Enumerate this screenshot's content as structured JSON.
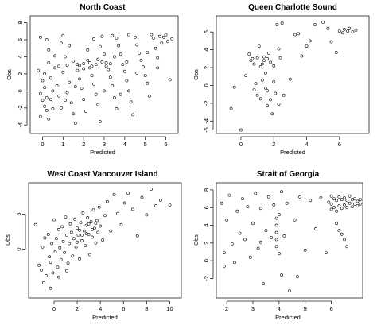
{
  "figure": {
    "panels": [
      {
        "title": "North Coast",
        "xlabel": "Predicted",
        "ylabel": "Obs",
        "xticks": [
          0,
          1,
          2,
          3,
          4,
          5,
          6
        ],
        "yticks": [
          -4,
          -2,
          0,
          2,
          4,
          6,
          8
        ],
        "xlim": [
          -0.6,
          6.6
        ],
        "ylim": [
          -5,
          8.8
        ]
      },
      {
        "title": "Queen Charlotte Sound",
        "xlabel": "Predicted",
        "ylabel": "Obs",
        "xticks": [
          0,
          2,
          4,
          6
        ],
        "yticks": [
          -5,
          -4,
          -2,
          0,
          2,
          4,
          6
        ],
        "xlim": [
          -1.5,
          7.8
        ],
        "ylim": [
          -5.4,
          7.8
        ]
      },
      {
        "title": "West Coast Vancouver Island",
        "xlabel": "Predicted",
        "ylabel": "Obs",
        "xticks": [
          0,
          2,
          4,
          6,
          8,
          10
        ],
        "yticks": [
          0,
          5
        ],
        "xlim": [
          -2.2,
          11
        ],
        "ylim": [
          -7,
          9.5
        ]
      },
      {
        "title": "Strait of Georgia",
        "xlabel": "Predicted",
        "ylabel": "Obs",
        "xticks": [
          2,
          3,
          4,
          5,
          6
        ],
        "yticks": [
          -2,
          0,
          2,
          4,
          6,
          8
        ],
        "xlim": [
          1.6,
          7.2
        ],
        "ylim": [
          -4.2,
          8.8
        ]
      }
    ]
  },
  "chart_data": [
    {
      "type": "scatter",
      "title": "North Coast",
      "xlabel": "Predicted",
      "ylabel": "Obs",
      "xlim": [
        -0.6,
        6.6
      ],
      "ylim": [
        -5,
        8.8
      ],
      "grid": false,
      "points": [
        [
          -0.1,
          6.3
        ],
        [
          0.2,
          6.0
        ],
        [
          0.3,
          4.8
        ],
        [
          -0.2,
          2.4
        ],
        [
          0.1,
          2.0
        ],
        [
          0.0,
          1.2
        ],
        [
          0.1,
          0.4
        ],
        [
          -0.1,
          -0.3
        ],
        [
          0.0,
          -1.1
        ],
        [
          0.1,
          -1.8
        ],
        [
          0.2,
          -2.3
        ],
        [
          -0.1,
          -3.0
        ],
        [
          0.3,
          -3.3
        ],
        [
          0.4,
          -1.0
        ],
        [
          0.5,
          0.0
        ],
        [
          0.4,
          1.5
        ],
        [
          0.6,
          2.7
        ],
        [
          0.7,
          0.6
        ],
        [
          0.8,
          -0.6
        ],
        [
          0.9,
          -2.0
        ],
        [
          1.0,
          6.5
        ],
        [
          0.9,
          5.6
        ],
        [
          1.1,
          4.0
        ],
        [
          1.2,
          3.0
        ],
        [
          1.0,
          2.2
        ],
        [
          1.3,
          1.0
        ],
        [
          1.2,
          -0.2
        ],
        [
          1.4,
          -1.4
        ],
        [
          1.5,
          -2.7
        ],
        [
          1.6,
          -3.8
        ],
        [
          1.5,
          3.5
        ],
        [
          1.7,
          2.4
        ],
        [
          1.8,
          1.4
        ],
        [
          1.9,
          0.3
        ],
        [
          2.0,
          -1.0
        ],
        [
          2.1,
          -2.4
        ],
        [
          1.8,
          3.0
        ],
        [
          2.0,
          3.2
        ],
        [
          2.2,
          3.6
        ],
        [
          2.3,
          2.7
        ],
        [
          2.4,
          1.8
        ],
        [
          2.5,
          0.8
        ],
        [
          2.6,
          -0.4
        ],
        [
          2.7,
          -1.6
        ],
        [
          2.8,
          -3.6
        ],
        [
          2.5,
          6.1
        ],
        [
          2.9,
          6.4
        ],
        [
          2.8,
          5.2
        ],
        [
          3.0,
          4.3
        ],
        [
          3.1,
          3.3
        ],
        [
          3.2,
          2.5
        ],
        [
          3.3,
          1.6
        ],
        [
          3.4,
          0.6
        ],
        [
          3.5,
          -0.8
        ],
        [
          3.6,
          -2.1
        ],
        [
          3.4,
          6.5
        ],
        [
          3.6,
          6.2
        ],
        [
          3.7,
          5.3
        ],
        [
          3.8,
          4.3
        ],
        [
          3.9,
          3.1
        ],
        [
          4.0,
          2.3
        ],
        [
          4.1,
          1.2
        ],
        [
          4.2,
          0.0
        ],
        [
          4.3,
          -1.3
        ],
        [
          4.4,
          -2.8
        ],
        [
          4.2,
          6.6
        ],
        [
          4.5,
          6.3
        ],
        [
          4.6,
          5.4
        ],
        [
          4.7,
          4.4
        ],
        [
          4.8,
          3.6
        ],
        [
          4.9,
          2.8
        ],
        [
          5.0,
          1.8
        ],
        [
          5.1,
          0.9
        ],
        [
          5.2,
          -0.6
        ],
        [
          5.3,
          6.6
        ],
        [
          5.4,
          6.2
        ],
        [
          5.5,
          5.0
        ],
        [
          5.6,
          3.9
        ],
        [
          5.7,
          6.4
        ],
        [
          5.8,
          5.6
        ],
        [
          5.9,
          6.3
        ],
        [
          6.0,
          6.6
        ],
        [
          6.1,
          5.8
        ],
        [
          6.2,
          1.3
        ],
        [
          6.3,
          6.1
        ],
        [
          0.3,
          3.3
        ],
        [
          0.6,
          4.1
        ],
        [
          0.8,
          2.9
        ],
        [
          1.1,
          -1.1
        ],
        [
          1.3,
          5.3
        ],
        [
          1.6,
          0.5
        ],
        [
          2.2,
          4.8
        ],
        [
          2.7,
          3.7
        ],
        [
          3.0,
          0.0
        ],
        [
          3.5,
          4.0
        ],
        [
          3.8,
          -0.4
        ],
        [
          4.1,
          3.4
        ],
        [
          4.6,
          2.1
        ],
        [
          5.1,
          4.5
        ],
        [
          5.6,
          2.7
        ],
        [
          2.4,
          2.9
        ],
        [
          2.6,
          3.1
        ],
        [
          2.9,
          3.4
        ],
        [
          3.1,
          2.9
        ],
        [
          3.3,
          3.2
        ],
        [
          2.0,
          2.6
        ],
        [
          1.7,
          3.1
        ],
        [
          2.3,
          3.3
        ],
        [
          0.2,
          -0.8
        ],
        [
          0.5,
          -2.1
        ]
      ]
    },
    {
      "type": "scatter",
      "title": "Queen Charlotte Sound",
      "xlabel": "Predicted",
      "ylabel": "Obs",
      "xlim": [
        -1.5,
        7.8
      ],
      "ylim": [
        -5.4,
        7.8
      ],
      "grid": false,
      "points": [
        [
          -0.6,
          -2.6
        ],
        [
          -0.4,
          -0.2
        ],
        [
          0.0,
          -5.0
        ],
        [
          0.3,
          1.1
        ],
        [
          0.5,
          3.5
        ],
        [
          0.6,
          2.8
        ],
        [
          0.7,
          3.0
        ],
        [
          0.8,
          2.4
        ],
        [
          0.8,
          -0.5
        ],
        [
          1.0,
          -1.1
        ],
        [
          1.0,
          3.1
        ],
        [
          1.1,
          4.4
        ],
        [
          1.2,
          2.1
        ],
        [
          1.2,
          -1.5
        ],
        [
          1.3,
          0.6
        ],
        [
          1.4,
          3.2
        ],
        [
          1.4,
          2.8
        ],
        [
          1.5,
          1.4
        ],
        [
          1.6,
          -0.6
        ],
        [
          1.6,
          -2.3
        ],
        [
          1.7,
          3.6
        ],
        [
          1.8,
          2.6
        ],
        [
          1.8,
          -1.6
        ],
        [
          1.9,
          -3.2
        ],
        [
          2.0,
          0.4
        ],
        [
          2.0,
          2.2
        ],
        [
          2.1,
          -0.9
        ],
        [
          2.2,
          6.8
        ],
        [
          2.3,
          4.1
        ],
        [
          2.4,
          3.1
        ],
        [
          2.5,
          7.0
        ],
        [
          2.6,
          -1.1
        ],
        [
          3.0,
          0.7
        ],
        [
          3.3,
          5.7
        ],
        [
          3.5,
          5.8
        ],
        [
          3.7,
          3.3
        ],
        [
          4.0,
          4.4
        ],
        [
          4.2,
          5.0
        ],
        [
          4.5,
          6.8
        ],
        [
          5.0,
          7.1
        ],
        [
          5.3,
          6.4
        ],
        [
          5.5,
          4.9
        ],
        [
          5.8,
          3.7
        ],
        [
          6.0,
          6.1
        ],
        [
          6.2,
          5.9
        ],
        [
          6.3,
          6.3
        ],
        [
          6.5,
          6.1
        ],
        [
          6.6,
          6.4
        ],
        [
          6.8,
          6.0
        ],
        [
          7.0,
          6.2
        ],
        [
          1.6,
          3.0
        ],
        [
          1.3,
          2.4
        ],
        [
          0.9,
          0.2
        ],
        [
          1.5,
          -0.3
        ],
        [
          2.3,
          -2.1
        ]
      ]
    },
    {
      "type": "scatter",
      "title": "West Coast Vancouver Island",
      "xlabel": "Predicted",
      "ylabel": "Obs",
      "xlim": [
        -2.2,
        11
      ],
      "ylim": [
        -7,
        9.5
      ],
      "grid": false,
      "points": [
        [
          -1.6,
          3.5
        ],
        [
          -1.3,
          -2.3
        ],
        [
          -1.1,
          -3.0
        ],
        [
          -1.0,
          0.3
        ],
        [
          -0.8,
          1.6
        ],
        [
          -0.7,
          -3.8
        ],
        [
          -0.5,
          2.1
        ],
        [
          -0.4,
          -1.1
        ],
        [
          -0.3,
          -1.9
        ],
        [
          -0.2,
          0.8
        ],
        [
          -0.1,
          -3.4
        ],
        [
          0.0,
          4.2
        ],
        [
          0.1,
          -0.4
        ],
        [
          0.2,
          1.5
        ],
        [
          0.3,
          -2.6
        ],
        [
          0.4,
          2.8
        ],
        [
          0.5,
          0.2
        ],
        [
          0.6,
          -1.5
        ],
        [
          0.7,
          3.2
        ],
        [
          0.8,
          1.1
        ],
        [
          0.9,
          -0.5
        ],
        [
          1.0,
          4.6
        ],
        [
          1.1,
          2.0
        ],
        [
          1.2,
          -2.0
        ],
        [
          1.3,
          0.8
        ],
        [
          1.4,
          3.6
        ],
        [
          1.5,
          2.4
        ],
        [
          1.6,
          -1.0
        ],
        [
          1.7,
          1.5
        ],
        [
          1.8,
          4.3
        ],
        [
          1.9,
          0.3
        ],
        [
          2.0,
          3.0
        ],
        [
          2.1,
          2.0
        ],
        [
          2.2,
          -1.4
        ],
        [
          2.3,
          3.8
        ],
        [
          2.4,
          1.2
        ],
        [
          2.5,
          5.2
        ],
        [
          2.6,
          2.6
        ],
        [
          2.7,
          0.5
        ],
        [
          2.8,
          3.4
        ],
        [
          2.9,
          4.5
        ],
        [
          3.0,
          2.1
        ],
        [
          3.1,
          -0.8
        ],
        [
          3.2,
          3.9
        ],
        [
          3.3,
          1.7
        ],
        [
          3.4,
          5.6
        ],
        [
          3.5,
          3.0
        ],
        [
          3.6,
          0.9
        ],
        [
          3.7,
          4.1
        ],
        [
          3.8,
          2.4
        ],
        [
          3.9,
          6.0
        ],
        [
          4.0,
          3.3
        ],
        [
          4.2,
          1.3
        ],
        [
          4.4,
          4.8
        ],
        [
          4.6,
          6.8
        ],
        [
          4.9,
          2.6
        ],
        [
          5.2,
          7.8
        ],
        [
          5.5,
          5.1
        ],
        [
          5.8,
          3.5
        ],
        [
          6.1,
          6.6
        ],
        [
          6.4,
          8.0
        ],
        [
          6.8,
          5.7
        ],
        [
          7.2,
          1.9
        ],
        [
          7.6,
          7.4
        ],
        [
          8.0,
          4.9
        ],
        [
          8.4,
          8.6
        ],
        [
          8.8,
          6.2
        ],
        [
          9.2,
          7.0
        ],
        [
          10.0,
          6.3
        ],
        [
          -0.9,
          -4.8
        ],
        [
          -0.3,
          -5.6
        ],
        [
          0.4,
          -4.0
        ],
        [
          1.1,
          -3.1
        ],
        [
          2.0,
          1.0
        ],
        [
          2.4,
          2.0
        ],
        [
          2.8,
          2.2
        ],
        [
          3.0,
          3.6
        ],
        [
          3.3,
          2.8
        ],
        [
          3.6,
          3.7
        ],
        [
          2.2,
          2.7
        ]
      ]
    },
    {
      "type": "scatter",
      "title": "Strait of Georgia",
      "xlabel": "Predicted",
      "ylabel": "Obs",
      "xlim": [
        1.6,
        7.2
      ],
      "ylim": [
        -4.2,
        8.8
      ],
      "grid": false,
      "points": [
        [
          1.8,
          6.5
        ],
        [
          1.9,
          0.9
        ],
        [
          1.9,
          -0.6
        ],
        [
          2.0,
          4.6
        ],
        [
          2.1,
          7.4
        ],
        [
          2.2,
          1.9
        ],
        [
          2.3,
          -0.2
        ],
        [
          2.4,
          5.6
        ],
        [
          2.5,
          3.1
        ],
        [
          2.6,
          7.0
        ],
        [
          2.7,
          2.4
        ],
        [
          2.8,
          6.1
        ],
        [
          2.9,
          0.4
        ],
        [
          3.0,
          4.2
        ],
        [
          3.1,
          7.6
        ],
        [
          3.2,
          1.4
        ],
        [
          3.3,
          5.9
        ],
        [
          3.4,
          -2.6
        ],
        [
          3.5,
          3.4
        ],
        [
          3.6,
          7.2
        ],
        [
          3.7,
          2.6
        ],
        [
          3.8,
          6.3
        ],
        [
          3.9,
          4.8
        ],
        [
          3.9,
          4.0
        ],
        [
          3.9,
          3.2
        ],
        [
          3.9,
          2.4
        ],
        [
          3.9,
          1.6
        ],
        [
          4.0,
          5.2
        ],
        [
          4.0,
          0.8
        ],
        [
          4.1,
          7.8
        ],
        [
          4.1,
          -1.6
        ],
        [
          4.2,
          2.8
        ],
        [
          4.3,
          6.5
        ],
        [
          4.4,
          -3.4
        ],
        [
          4.6,
          4.6
        ],
        [
          4.8,
          7.2
        ],
        [
          5.0,
          1.2
        ],
        [
          5.2,
          6.8
        ],
        [
          5.4,
          3.6
        ],
        [
          5.6,
          7.1
        ],
        [
          5.8,
          0.9
        ],
        [
          5.9,
          6.6
        ],
        [
          6.0,
          7.3
        ],
        [
          6.0,
          6.4
        ],
        [
          6.0,
          5.8
        ],
        [
          6.1,
          7.0
        ],
        [
          6.1,
          6.0
        ],
        [
          6.2,
          6.8
        ],
        [
          6.2,
          5.6
        ],
        [
          6.3,
          7.2
        ],
        [
          6.3,
          6.2
        ],
        [
          6.3,
          3.4
        ],
        [
          6.4,
          6.9
        ],
        [
          6.4,
          5.9
        ],
        [
          6.4,
          3.0
        ],
        [
          6.5,
          7.1
        ],
        [
          6.5,
          6.3
        ],
        [
          6.5,
          2.4
        ],
        [
          6.6,
          6.8
        ],
        [
          6.6,
          6.0
        ],
        [
          6.7,
          7.3
        ],
        [
          6.7,
          6.5
        ],
        [
          6.8,
          6.9
        ],
        [
          6.8,
          6.1
        ],
        [
          6.9,
          7.0
        ],
        [
          6.9,
          6.4
        ],
        [
          7.0,
          6.7
        ],
        [
          7.0,
          6.2
        ],
        [
          7.1,
          6.9
        ],
        [
          7.1,
          6.4
        ],
        [
          6.2,
          4.2
        ],
        [
          6.6,
          1.6
        ],
        [
          4.7,
          -1.8
        ],
        [
          3.3,
          2.1
        ]
      ]
    }
  ]
}
